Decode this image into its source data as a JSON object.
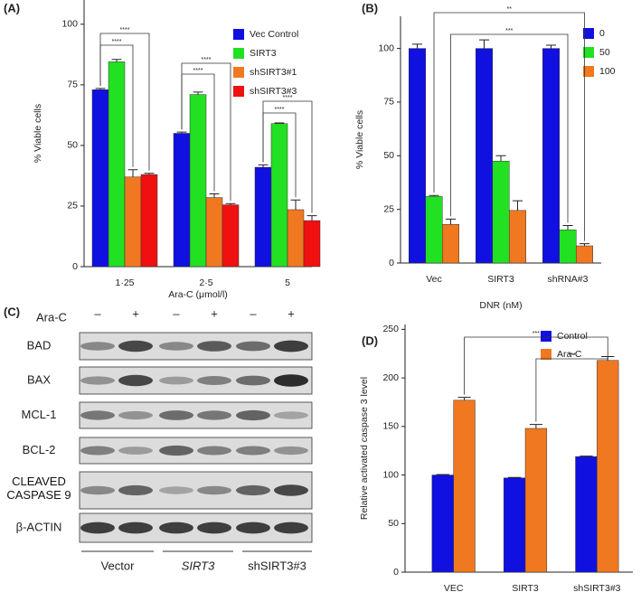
{
  "chart_data": [
    {
      "type": "bar",
      "panel": "(A)",
      "ylabel": "% Viable cells",
      "xlabel": "Ara-C (μmol/l)",
      "categories": [
        "1·25",
        "2·5",
        "5"
      ],
      "series": [
        {
          "name": "Vec Control",
          "color": "#1010e0",
          "values": [
            73,
            55,
            41
          ],
          "errors": [
            0.5,
            0.5,
            1
          ]
        },
        {
          "name": "SIRT3",
          "color": "#22e022",
          "values": [
            84.5,
            71,
            59
          ],
          "errors": [
            1,
            1,
            0.3
          ]
        },
        {
          "name": "shSIRT3#1",
          "color": "#f07820",
          "values": [
            37,
            28.5,
            23.5
          ],
          "errors": [
            3,
            1.5,
            4
          ]
        },
        {
          "name": "shSIRT3#3",
          "color": "#f01010",
          "values": [
            38,
            25.5,
            19
          ],
          "errors": [
            0.5,
            0.5,
            2
          ]
        }
      ],
      "ylim": [
        0,
        110
      ],
      "yticks": [
        0,
        25,
        50,
        75,
        100
      ],
      "annotations": [
        "****",
        "****",
        "****",
        "****",
        "****",
        "****"
      ]
    },
    {
      "type": "bar",
      "panel": "(B)",
      "ylabel": "% Viable cells",
      "xlabel": "DNR (nM)",
      "categories": [
        "Vec",
        "SIRT3",
        "shRNA#3"
      ],
      "series": [
        {
          "name": "0",
          "color": "#1010e0",
          "values": [
            100,
            100,
            100
          ],
          "errors": [
            2,
            4,
            1.5
          ]
        },
        {
          "name": "50",
          "color": "#22e022",
          "values": [
            31,
            47.5,
            15.5
          ],
          "errors": [
            0.5,
            2.5,
            2
          ]
        },
        {
          "name": "100",
          "color": "#f07820",
          "values": [
            18,
            24.5,
            8
          ],
          "errors": [
            2.5,
            4.5,
            1
          ]
        }
      ],
      "ylim": [
        0,
        115
      ],
      "yticks": [
        0,
        25,
        50,
        75,
        100
      ],
      "annotations": [
        "**",
        "***"
      ]
    },
    {
      "type": "bar",
      "panel": "(D)",
      "ylabel": "Relative activated caspase 3 level",
      "xlabel": null,
      "categories": [
        "VEC",
        "SIRT3",
        "shSIRT3#3"
      ],
      "series": [
        {
          "name": "Control",
          "color": "#1010e0",
          "values": [
            100,
            97,
            119
          ],
          "errors": [
            0.5,
            0.5,
            0.5
          ]
        },
        {
          "name": "Ara-C",
          "color": "#f07820",
          "values": [
            177,
            148,
            218
          ],
          "errors": [
            3,
            4,
            4
          ]
        }
      ],
      "ylim": [
        0,
        255
      ],
      "yticks": [
        0,
        50,
        100,
        150,
        200,
        250
      ],
      "annotations": [
        "***",
        "***"
      ]
    }
  ],
  "blot": {
    "panel": "(C)",
    "treatment": "Ara-C",
    "signs": [
      "–",
      "+",
      "–",
      "+",
      "–",
      "+"
    ],
    "rows": [
      "BAD",
      "BAX",
      "MCL-1",
      "BCL-2",
      "CLEAVED CASPASE 9",
      "β-ACTIN"
    ],
    "groups": [
      "Vector",
      "SIRT3",
      "shSIRT3#3"
    ]
  }
}
